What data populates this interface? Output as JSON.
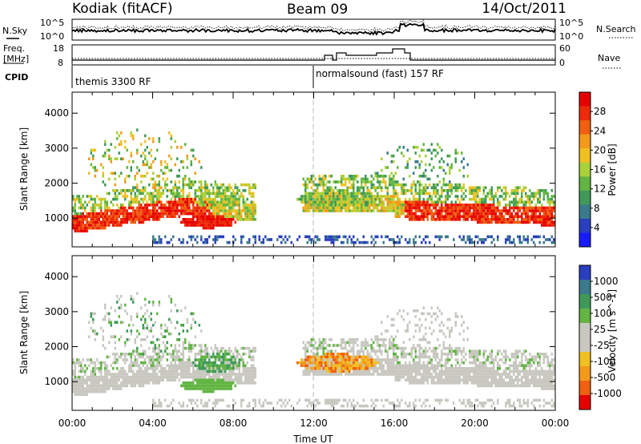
{
  "header": {
    "station": "Kodiak (fitACF)",
    "beam": "Beam 09",
    "date": "14/Oct/2011"
  },
  "summary_panel": {
    "left_labels": [
      "N.Sky",
      "Freq.",
      "[MHz]",
      "CPID"
    ],
    "right_labels": [
      "N.Search",
      "Nave"
    ],
    "nsky_ticks": [
      "10^5",
      "10^0"
    ],
    "nsearch_ticks": [
      "10^5",
      "10^0"
    ],
    "freq_ticks": [
      "18",
      "8"
    ],
    "nave_ticks": [
      "60",
      "0"
    ],
    "cpid": [
      {
        "label": "themis 3300 RF",
        "start_hour": 0
      },
      {
        "label": "normalsound (fast) 157 RF",
        "start_hour": 12
      }
    ]
  },
  "colors": {
    "power": [
      "#1a1aff",
      "#2a3fbf",
      "#3b7a8c",
      "#3f9a5a",
      "#63b543",
      "#a9d13a",
      "#f0c020",
      "#f39a1a",
      "#f06010",
      "#ee2a0a",
      "#e60000"
    ],
    "velocity": [
      "#e60000",
      "#f06010",
      "#f39a1a",
      "#f0c020",
      "#c8c8c0",
      "#c8c8c0",
      "#63b543",
      "#3f9a5a",
      "#3b7a8c",
      "#2a3fbf"
    ]
  },
  "chart_data": [
    {
      "type": "heatmap",
      "name": "power",
      "xlabel": "",
      "ylabel": "Slant Range [km]",
      "xlim": [
        0,
        24
      ],
      "ylim": [
        180,
        4600
      ],
      "yticks": [
        1000,
        2000,
        3000,
        4000
      ],
      "colorbar": {
        "label": "Power [dB]",
        "range": [
          0,
          32
        ],
        "ticks": [
          "4",
          "8",
          "12",
          "16",
          "20",
          "24",
          "28"
        ]
      }
    },
    {
      "type": "heatmap",
      "name": "velocity",
      "xlabel": "Time UT",
      "ylabel": "Slant Range [km]",
      "xlim": [
        0,
        24
      ],
      "ylim": [
        180,
        4600
      ],
      "yticks": [
        1000,
        2000,
        3000,
        4000
      ],
      "xticks": [
        "00:00",
        "04:00",
        "08:00",
        "12:00",
        "16:00",
        "20:00",
        "00:00"
      ],
      "colorbar": {
        "label": "Velocity [m s^-1]",
        "ticks": [
          "1000",
          "500",
          "100",
          "25",
          "-25",
          "-100",
          "-500",
          "-1000"
        ]
      }
    }
  ]
}
